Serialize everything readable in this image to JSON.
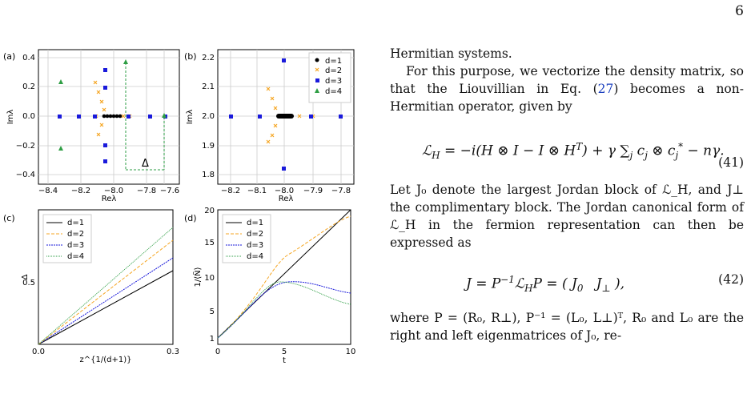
{
  "page_number": "6",
  "panels": {
    "a": {
      "tag": "(a)",
      "xlabel": "Reλ",
      "ylabel": "Imλ",
      "xticks": [
        "−8.4",
        "−8.2",
        "−8.0",
        "−7.8",
        "−7.6"
      ],
      "yticks": [
        "0.4",
        "0.2",
        "0.0",
        "−0.2",
        "−0.4"
      ],
      "delta_label": "Δ"
    },
    "b": {
      "tag": "(b)",
      "xlabel": "Reλ",
      "ylabel": "Imλ",
      "xticks": [
        "−8.2",
        "−8.1",
        "−8.0",
        "−7.9",
        "−7.8"
      ],
      "yticks": [
        "2.2",
        "2.1",
        "2.0",
        "1.9",
        "1.8"
      ],
      "legend": [
        "d=1",
        "d=2",
        "d=3",
        "d=4"
      ]
    },
    "c": {
      "tag": "(c)",
      "xlabel": "z^{1/(d+1)}",
      "ylabel": "Δ",
      "xticks": [
        "0.0",
        "0.3"
      ],
      "yticks": [
        "0.5"
      ],
      "legend": [
        "d=1",
        "d=2",
        "d=3",
        "d=4"
      ]
    },
    "d": {
      "tag": "(d)",
      "xlabel": "t",
      "ylabel": "1/⟨Ñ⟩",
      "xticks": [
        "0",
        "5",
        "10"
      ],
      "yticks": [
        "20",
        "15",
        "10",
        "5",
        "1"
      ],
      "legend": [
        "d=1",
        "d=2",
        "d=3",
        "d=4"
      ]
    }
  },
  "series_colors": {
    "d1": "#000000",
    "d2": "#f5a623",
    "d3": "#1a1adb",
    "d4": "#2e9e44"
  },
  "text": {
    "p1": "Hermitian systems.",
    "p2a": "For this purpose, we vectorize the density matrix, so that the Liouvillian in Eq. (",
    "p2ref": "27",
    "p2b": ") becomes a non-Hermitian operator, given by",
    "eq41": "(41)",
    "p3": "Let J₀ denote the largest Jordan block of ℒ_H, and J⊥ the complimentary block. The Jordan canonical form of ℒ_H in the fermion representation can then be expressed as",
    "eq42": "(42)",
    "p4": "where P = (R₀, R⊥), P⁻¹ = (L₀, L⊥)ᵀ, R₀ and L₀ are the right and left eigenmatrices of J₀, re-"
  }
}
